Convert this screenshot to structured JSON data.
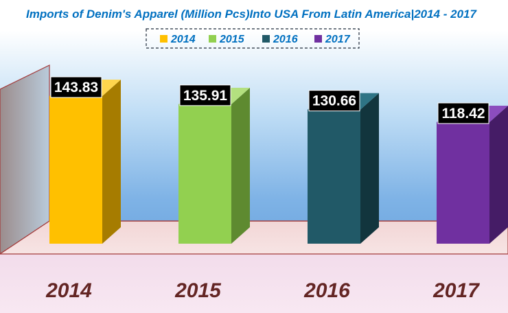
{
  "chart_data": {
    "type": "bar",
    "title": "Imports of Denim's  Apparel (Million Pcs)Into USA From Latin America|2014 - 2017",
    "categories": [
      "2014",
      "2015",
      "2016",
      "2017"
    ],
    "values": [
      143.83,
      135.91,
      130.66,
      118.42
    ],
    "legend": [
      "2014",
      "2015",
      "2016",
      "2017"
    ],
    "legend_position": "top-center",
    "colors": {
      "front": [
        "#FFC000",
        "#92D050",
        "#215967",
        "#7030A0"
      ],
      "side": [
        "#A67C00",
        "#5E8A30",
        "#12353D",
        "#451C66"
      ],
      "top": [
        "#FFD54D",
        "#B3E07F",
        "#2E7485",
        "#8B4DBE"
      ]
    },
    "title_color": "#0070C0",
    "category_label_color": "#632523",
    "value_label_bg": "#000000",
    "value_label_color": "#ffffff",
    "grid": false,
    "data_labels": true
  }
}
